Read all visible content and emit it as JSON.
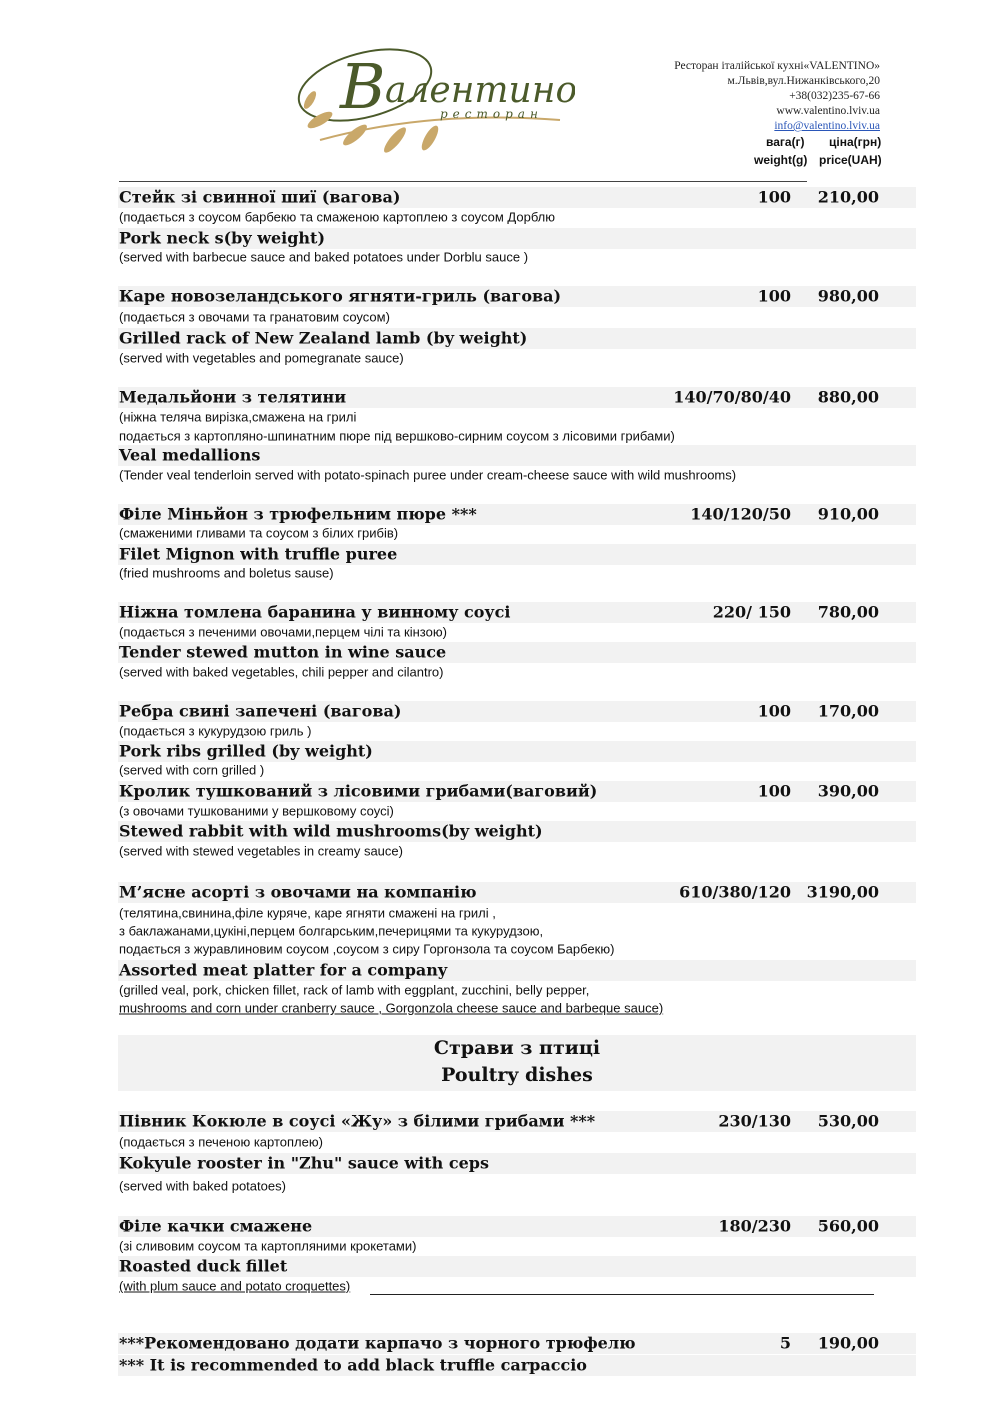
{
  "header": {
    "logo_text": "Валентино ресторан",
    "restaurant": "Ресторан італійської кухні«VALENTINO»",
    "address": "м.Львів,вул.Нижанківського,20",
    "phone": "+38(032)235-67-66",
    "website": "www.valentino.lviv.ua",
    "email": "info@valentino.lviv.ua",
    "weight_ua": "вага(г)",
    "price_ua": "ціна(грн)",
    "weight_en": "weight(g)",
    "price_en": "price(UAH)",
    "brand_colors": {
      "green": "#4b5a2a",
      "gold": "#c9a86a"
    }
  },
  "dishes": [
    {
      "name_ua": "Стейк зі свинної шиї (вагова)",
      "weight": "100",
      "price": "210,00",
      "desc_ua": [
        "(подається з соусом барбекю та смаженою картоплею з соусом Дорблю"
      ],
      "name_en": "Pork neck s(by weight)",
      "desc_en": [
        "(served with barbecue sauce and baked potatoes under Dorblu sauce )"
      ]
    },
    {
      "name_ua": "Каре новозеландського  ягняти-гриль (вагова)",
      "weight": "100",
      "price": "980,00",
      "desc_ua": [
        "(подається з овочами та гранатовим соусом)"
      ],
      "name_en": "Grilled rack of  New Zealand lamb (by weight)",
      "desc_en": [
        "(served with vegetables and pomegranate sauce)"
      ]
    },
    {
      "name_ua": "Медальйони з телятини",
      "weight": "140/70/80/40",
      "price": "880,00",
      "desc_ua": [
        "(ніжна теляча вирізка,смажена на грилі",
        "подається з картопляно-шпинатним пюре під  вершково-сирним соусом з лісовими грибами)"
      ],
      "name_en": "Veal medallions",
      "desc_en": [
        "(Tender veal tenderloin served with potato-spinach puree under cream-cheese sauce with wild mushrooms)"
      ]
    },
    {
      "name_ua": "Філе Міньйон з трюфельним пюре ***",
      "weight": "140/120/50",
      "price": "910,00",
      "desc_ua": [
        "(смаженими гливами  та соусом з білих грибів)"
      ],
      "name_en": "Filet Mignon with truffle puree",
      "desc_en": [
        "(fried mushrooms and boletus sause)"
      ]
    },
    {
      "name_ua": "Ніжна томлена баранина у винному соусі",
      "weight": "220/ 150",
      "price": "780,00",
      "desc_ua": [
        " (подається з печеними овочами,перцем чілі та кінзою)"
      ],
      "name_en": "Tender stewed mutton  in  wine  sauce",
      "desc_en": [
        "(served with baked vegetables, chili pepper and cilantro)"
      ]
    },
    {
      "name_ua": "Ребра свині запечені (вагова)",
      "weight": "100",
      "price": "170,00",
      "desc_ua": [
        "(подається з кукурудзою гриль )"
      ],
      "name_en": "Pork  ribs grilled (by weight)",
      "desc_en": [
        "(served with corn grilled )"
      ]
    },
    {
      "name_ua": "Кролик тушкований з лісовими грибами(ваговий)",
      "weight": "100",
      "price": "390,00",
      "desc_ua": [
        "(з овочами тушкованими у вершковому соусі)"
      ],
      "name_en": "Stewed rabbit with wild mushrooms(by weight)",
      "desc_en": [
        "(served with stewed vegetables in creamy sauce)"
      ]
    },
    {
      "name_ua": "М’ясне асорті з овочами на компанію",
      "weight": "610/380/120",
      "price": "3190,00",
      "desc_ua": [
        "(телятина,свинина,філе куряче, каре  ягняти смажені на грилі ,",
        "з баклажанами,цукіні,перцем болгарським,печерицями та кукурудзою,",
        "подається з журавлиновим  соусом ,соусом з сиру Горгонзола та соусом Барбекю)"
      ],
      "name_en": "Assorted meat platter for a company",
      "desc_en": [
        " (grilled veal, pork, chicken fillet, rack of lamb with eggplant, zucchini, belly pepper,",
        " mushrooms and corn  under cranberry sauce , Gorgonzola cheese sauce and barbeque sauce)"
      ]
    },
    {
      "name_ua": "Півник Кокюле в соусі «Жу» з білими  грибами  ***",
      "weight": "230/130",
      "price": "530,00",
      "desc_ua": [
        " (подається з печеною картоплею)"
      ],
      "name_en": "Kokyule rooster in \"Zhu\" sauce with ceps",
      "desc_en": [
        " (served with baked potatoes)"
      ]
    },
    {
      "name_ua": "Філе качки смажене",
      "weight": "180/230",
      "price": "560,00",
      "desc_ua": [
        "(зі сливовим соусом та картопляними крокетами)"
      ],
      "name_en": "Roasted duck fillet",
      "desc_en": [
        "(with plum sauce and potato croquettes)"
      ]
    }
  ],
  "section": {
    "title_ua": "Страви з птиці",
    "title_en": "Poultry dishes"
  },
  "footer": {
    "note_ua": "***Рекомендовано додати карпачо з чорного трюфелю",
    "weight": "5",
    "price": "190,00",
    "note_en": "*** It is recommended to add black truffle carpaccio"
  }
}
